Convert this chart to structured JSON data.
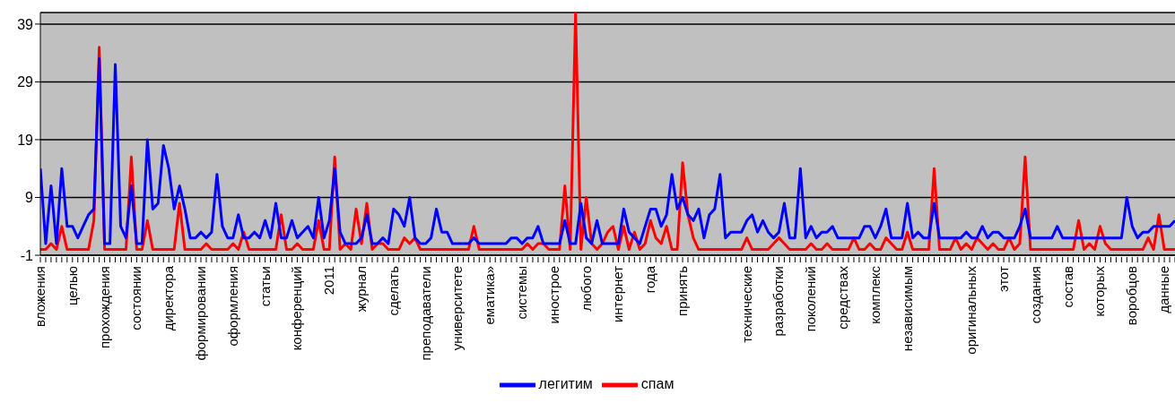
{
  "chart_data": {
    "type": "line",
    "categories": [
      "вложения",
      null,
      null,
      null,
      null,
      null,
      "целью",
      null,
      null,
      null,
      null,
      null,
      "прохождения",
      null,
      null,
      null,
      null,
      null,
      "состоянии",
      null,
      null,
      null,
      null,
      null,
      "директора",
      null,
      null,
      null,
      null,
      null,
      "формировании",
      null,
      null,
      null,
      null,
      null,
      "оформления",
      null,
      null,
      null,
      null,
      null,
      "статьи",
      null,
      null,
      null,
      null,
      null,
      "конференций",
      null,
      null,
      null,
      null,
      null,
      "2011",
      null,
      null,
      null,
      null,
      null,
      "журнал",
      null,
      null,
      null,
      null,
      null,
      "сделать",
      null,
      null,
      null,
      null,
      null,
      "преподаватели",
      null,
      null,
      null,
      null,
      null,
      "университете",
      null,
      null,
      null,
      null,
      null,
      "ематика»",
      null,
      null,
      null,
      null,
      null,
      "системы",
      null,
      null,
      null,
      null,
      null,
      "иностроe",
      null,
      null,
      null,
      null,
      null,
      "любого",
      null,
      null,
      null,
      null,
      null,
      "интернет",
      null,
      null,
      null,
      null,
      null,
      "года",
      null,
      null,
      null,
      null,
      null,
      "принять",
      null,
      null,
      null,
      null,
      null,
      null,
      null,
      null,
      null,
      null,
      null,
      "технические",
      null,
      null,
      null,
      null,
      null,
      "разработки",
      null,
      null,
      null,
      null,
      null,
      "поколений",
      null,
      null,
      null,
      null,
      null,
      "средствах",
      null,
      null,
      null,
      null,
      null,
      "комплекс",
      null,
      null,
      null,
      null,
      null,
      "независимым",
      null,
      null,
      null,
      null,
      null,
      null,
      null,
      null,
      null,
      null,
      null,
      "оригинальных",
      null,
      null,
      null,
      null,
      null,
      "этот",
      null,
      null,
      null,
      null,
      null,
      "создания",
      null,
      null,
      null,
      null,
      null,
      "состав",
      null,
      null,
      null,
      null,
      null,
      "которых",
      null,
      null,
      null,
      null,
      null,
      "воробцов",
      null,
      null,
      null,
      null,
      null,
      "данные",
      null,
      null
    ],
    "series": [
      {
        "name": "спам",
        "color": "#ff0000",
        "values": [
          0,
          0,
          1,
          0,
          4,
          0,
          0,
          0,
          0,
          0,
          5,
          35,
          0,
          0,
          0,
          0,
          0,
          16,
          0,
          0,
          5,
          0,
          0,
          0,
          0,
          0,
          8,
          0,
          0,
          0,
          0,
          1,
          0,
          0,
          0,
          0,
          1,
          0,
          3,
          0,
          0,
          0,
          0,
          0,
          0,
          6,
          0,
          0,
          1,
          0,
          0,
          0,
          5,
          0,
          0,
          16,
          0,
          1,
          0,
          7,
          1,
          8,
          0,
          1,
          1,
          0,
          0,
          0,
          2,
          1,
          2,
          0,
          0,
          0,
          0,
          0,
          0,
          0,
          0,
          0,
          0,
          4,
          0,
          0,
          0,
          0,
          0,
          0,
          0,
          0,
          0,
          1,
          0,
          1,
          1,
          0,
          0,
          0,
          11,
          0,
          41,
          0,
          9,
          1,
          0,
          1,
          3,
          4,
          0,
          4,
          0,
          3,
          0,
          1,
          5,
          2,
          1,
          4,
          0,
          0,
          15,
          6,
          2,
          0,
          0,
          0,
          0,
          0,
          0,
          0,
          0,
          0,
          2,
          0,
          0,
          0,
          0,
          1,
          2,
          1,
          0,
          0,
          0,
          0,
          1,
          0,
          0,
          1,
          0,
          0,
          0,
          0,
          2,
          0,
          0,
          1,
          0,
          0,
          2,
          1,
          0,
          0,
          3,
          0,
          0,
          0,
          0,
          14,
          0,
          0,
          0,
          2,
          0,
          1,
          0,
          2,
          1,
          0,
          1,
          0,
          0,
          2,
          0,
          1,
          16,
          0,
          0,
          0,
          0,
          0,
          0,
          0,
          0,
          0,
          5,
          0,
          1,
          0,
          4,
          1,
          0,
          0,
          0,
          0,
          0,
          0,
          0,
          2,
          0,
          6,
          0,
          0,
          0
        ]
      },
      {
        "name": "легитим",
        "color": "#0000ff",
        "values": [
          14,
          1,
          11,
          1,
          14,
          4,
          4,
          2,
          4,
          6,
          7,
          33,
          1,
          1,
          32,
          4,
          2,
          11,
          1,
          1,
          19,
          7,
          8,
          18,
          14,
          7,
          11,
          7,
          2,
          2,
          3,
          2,
          3,
          13,
          4,
          2,
          2,
          6,
          2,
          2,
          3,
          2,
          5,
          2,
          8,
          2,
          2,
          5,
          2,
          3,
          4,
          2,
          9,
          2,
          5,
          14,
          3,
          1,
          1,
          1,
          2,
          6,
          1,
          1,
          2,
          1,
          7,
          6,
          4,
          9,
          2,
          1,
          1,
          2,
          7,
          3,
          3,
          1,
          1,
          1,
          1,
          2,
          1,
          1,
          1,
          1,
          1,
          1,
          2,
          2,
          1,
          2,
          2,
          4,
          1,
          1,
          1,
          1,
          5,
          1,
          1,
          8,
          2,
          1,
          5,
          1,
          1,
          1,
          1,
          7,
          3,
          2,
          1,
          4,
          7,
          7,
          4,
          6,
          13,
          7,
          9,
          6,
          5,
          7,
          2,
          6,
          7,
          13,
          2,
          3,
          3,
          3,
          5,
          6,
          3,
          5,
          3,
          2,
          3,
          8,
          2,
          2,
          14,
          2,
          4,
          2,
          3,
          3,
          4,
          2,
          2,
          2,
          2,
          2,
          4,
          4,
          2,
          4,
          7,
          2,
          2,
          2,
          8,
          2,
          3,
          2,
          2,
          8,
          2,
          2,
          2,
          2,
          2,
          3,
          2,
          2,
          4,
          2,
          3,
          3,
          2,
          2,
          2,
          4,
          7,
          2,
          2,
          2,
          2,
          2,
          4,
          2,
          2,
          2,
          2,
          2,
          2,
          2,
          2,
          2,
          2,
          2,
          2,
          9,
          4,
          2,
          3,
          3,
          4,
          4,
          4,
          4,
          5
        ]
      }
    ],
    "ylim": [
      -1,
      41
    ],
    "yticks": [
      -1,
      9,
      19,
      29,
      39
    ],
    "grid": "y",
    "legend": "bottom",
    "marker": "none",
    "line_style": "solid"
  }
}
